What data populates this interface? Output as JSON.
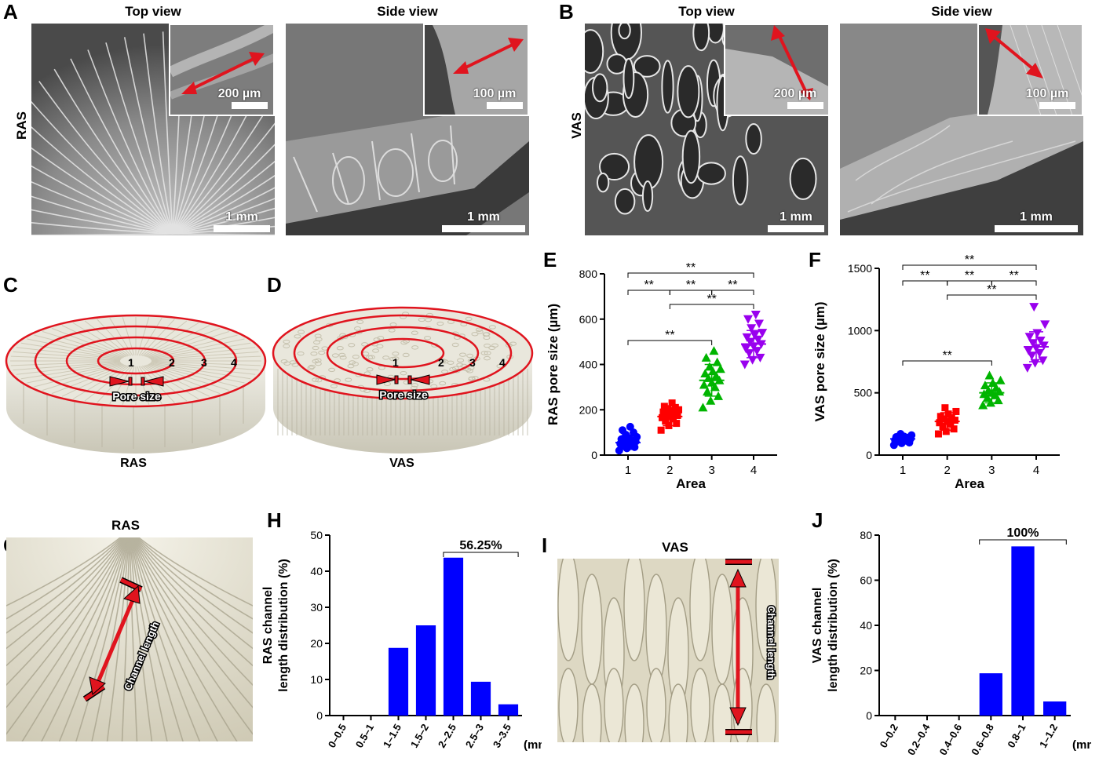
{
  "panels": {
    "A": {
      "letter": "A",
      "top_title": "Top view",
      "side_title": "Side view",
      "row_label": "RAS",
      "top_inset_scale": "200 µm",
      "top_scale": "1 mm",
      "side_inset_scale": "100 µm",
      "side_scale": "1 mm"
    },
    "B": {
      "letter": "B",
      "top_title": "Top view",
      "side_title": "Side view",
      "row_label": "VAS",
      "top_inset_scale": "200 µm",
      "top_scale": "1 mm",
      "side_inset_scale": "100 µm",
      "side_scale": "1 mm"
    },
    "C": {
      "letter": "C",
      "caption": "RAS",
      "zones": [
        "1",
        "2",
        "3",
        "4"
      ],
      "pore_label": "Pore size"
    },
    "D": {
      "letter": "D",
      "caption": "VAS",
      "zones": [
        "1",
        "2",
        "3",
        "4"
      ],
      "pore_label": "Pore size"
    },
    "G": {
      "letter": "G",
      "title": "RAS",
      "arrow_label": "Channel length"
    },
    "I": {
      "letter": "I",
      "title": "VAS",
      "arrow_label": "Channel length"
    },
    "E": {
      "letter": "E"
    },
    "F": {
      "letter": "F"
    },
    "H": {
      "letter": "H"
    },
    "J": {
      "letter": "J"
    }
  },
  "colors": {
    "area1": "#0000ff",
    "area2": "#ff0000",
    "area3": "#00b400",
    "area4": "#9900ee",
    "bar": "#0000ff",
    "ring": "#e0141e"
  },
  "chart_data": [
    {
      "id": "E",
      "type": "scatter",
      "ylabel": "RAS pore size (µm)",
      "xlabel": "Area",
      "categories": [
        "1",
        "2",
        "3",
        "4"
      ],
      "ylim": [
        0,
        800
      ],
      "yticks": [
        0,
        200,
        400,
        600,
        800
      ],
      "means": [
        55,
        170,
        330,
        490
      ],
      "sd": [
        30,
        40,
        70,
        60
      ],
      "markers": [
        "circle",
        "square",
        "triangle-up",
        "triangle-down"
      ],
      "points": [
        [
          20,
          30,
          35,
          40,
          45,
          50,
          55,
          60,
          62,
          65,
          70,
          75,
          80,
          90,
          100,
          110,
          125
        ],
        [
          110,
          130,
          140,
          150,
          160,
          165,
          170,
          175,
          180,
          185,
          190,
          195,
          200,
          205,
          210,
          215,
          230
        ],
        [
          210,
          240,
          260,
          280,
          300,
          310,
          320,
          330,
          340,
          350,
          360,
          370,
          380,
          390,
          410,
          430,
          460
        ],
        [
          400,
          420,
          430,
          450,
          460,
          470,
          480,
          490,
          500,
          510,
          520,
          530,
          540,
          560,
          580,
          600,
          620
        ]
      ],
      "significance": [
        {
          "from": "1",
          "to": "4",
          "label": "**"
        },
        {
          "from": "1",
          "to": "2",
          "label": "**"
        },
        {
          "from": "2",
          "to": "3",
          "label": "**"
        },
        {
          "from": "3",
          "to": "4",
          "label": "**"
        },
        {
          "from": "2",
          "to": "4",
          "label": "**"
        },
        {
          "from": "1",
          "to": "3",
          "label": "**"
        }
      ]
    },
    {
      "id": "F",
      "type": "scatter",
      "ylabel": "VAS pore size (µm)",
      "xlabel": "Area",
      "categories": [
        "1",
        "2",
        "3",
        "4"
      ],
      "ylim": [
        0,
        1500
      ],
      "yticks": [
        0,
        500,
        1000,
        1500
      ],
      "means": [
        130,
        270,
        500,
        870
      ],
      "sd": [
        35,
        70,
        80,
        120
      ],
      "markers": [
        "circle",
        "square",
        "triangle-up",
        "triangle-down"
      ],
      "points": [
        [
          80,
          95,
          100,
          110,
          115,
          120,
          125,
          130,
          135,
          140,
          145,
          150,
          160,
          170
        ],
        [
          170,
          190,
          210,
          230,
          250,
          260,
          270,
          280,
          290,
          300,
          310,
          330,
          350,
          380
        ],
        [
          400,
          420,
          440,
          460,
          480,
          490,
          500,
          510,
          520,
          540,
          560,
          580,
          600,
          640
        ],
        [
          700,
          740,
          760,
          800,
          820,
          840,
          860,
          880,
          900,
          920,
          950,
          980,
          1050,
          1190
        ]
      ],
      "significance": [
        {
          "from": "1",
          "to": "4",
          "label": "**"
        },
        {
          "from": "1",
          "to": "2",
          "label": "**"
        },
        {
          "from": "2",
          "to": "3",
          "label": "**"
        },
        {
          "from": "3",
          "to": "4",
          "label": "**"
        },
        {
          "from": "2",
          "to": "4",
          "label": "**"
        },
        {
          "from": "1",
          "to": "3",
          "label": "**"
        }
      ]
    },
    {
      "id": "H",
      "type": "bar",
      "ylabel_line1": "RAS channel",
      "ylabel_line2": "length distribution (%)",
      "unit": "(mm)",
      "categories": [
        "0–0.5",
        "0.5–1",
        "1–1.5",
        "1.5–2",
        "2–2.5",
        "2.5–3",
        "3–3.5"
      ],
      "values": [
        0,
        0,
        18.75,
        25,
        43.75,
        9.375,
        3.125
      ],
      "ylim": [
        0,
        50
      ],
      "yticks": [
        0,
        10,
        20,
        30,
        40,
        50
      ],
      "bracket": {
        "from": "2–2.5",
        "to": "3–3.5",
        "label": "56.25%"
      }
    },
    {
      "id": "J",
      "type": "bar",
      "ylabel_line1": "VAS channel",
      "ylabel_line2": "length distribution (%)",
      "unit": "(mm)",
      "categories": [
        "0–0.2",
        "0.2–0.4",
        "0.4–0.6",
        "0.6–0.8",
        "0.8–1",
        "1–1.2"
      ],
      "values": [
        0,
        0,
        0,
        18.75,
        75,
        6.25
      ],
      "ylim": [
        0,
        80
      ],
      "yticks": [
        0,
        20,
        40,
        60,
        80
      ],
      "bracket": {
        "from": "0.6–0.8",
        "to": "1–1.2",
        "label": "100%"
      }
    }
  ]
}
